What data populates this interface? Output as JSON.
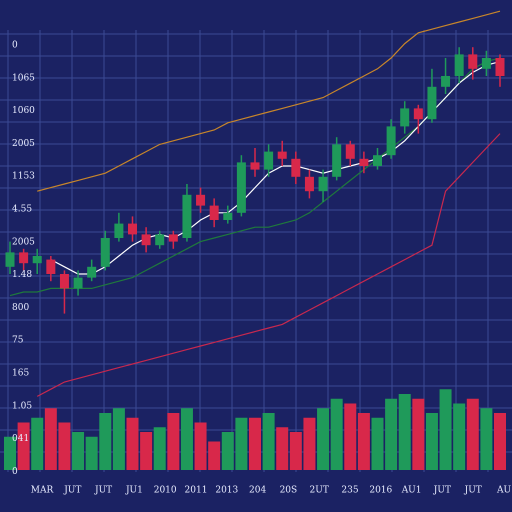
{
  "chart_data": {
    "type": "candlestick",
    "y_labels": [
      "0",
      "1065",
      "1060",
      "2005",
      "1153",
      "4.55",
      "2005",
      "1.48",
      "800",
      "75",
      "165",
      "1.05",
      "041",
      "0"
    ],
    "x_labels": [
      "MAR",
      "JUT",
      "JUT",
      "JU1",
      "2010",
      "2011",
      "2013",
      "204",
      "20S",
      "2UT",
      "235",
      "2016",
      "AU1",
      "JUT",
      "JUT",
      "AU"
    ],
    "ylim": [
      0,
      110
    ],
    "volume_lim": [
      0,
      40
    ],
    "up_color": "#1f9a5a",
    "down_color": "#d8284a",
    "candles": [
      {
        "open": 37,
        "high": 44,
        "low": 35,
        "close": 41
      },
      {
        "open": 41,
        "high": 42,
        "low": 36,
        "close": 38
      },
      {
        "open": 38,
        "high": 42,
        "low": 35,
        "close": 40
      },
      {
        "open": 39,
        "high": 40,
        "low": 33,
        "close": 35
      },
      {
        "open": 35,
        "high": 36,
        "low": 24,
        "close": 31
      },
      {
        "open": 31,
        "high": 36,
        "low": 29,
        "close": 34
      },
      {
        "open": 34,
        "high": 39,
        "low": 33,
        "close": 37
      },
      {
        "open": 37,
        "high": 47,
        "low": 36,
        "close": 45
      },
      {
        "open": 45,
        "high": 52,
        "low": 44,
        "close": 49
      },
      {
        "open": 49,
        "high": 51,
        "low": 44,
        "close": 46
      },
      {
        "open": 46,
        "high": 48,
        "low": 41,
        "close": 43
      },
      {
        "open": 43,
        "high": 47,
        "low": 42,
        "close": 46
      },
      {
        "open": 46,
        "high": 47,
        "low": 42,
        "close": 44
      },
      {
        "open": 45,
        "high": 60,
        "low": 44,
        "close": 57
      },
      {
        "open": 57,
        "high": 59,
        "low": 52,
        "close": 54
      },
      {
        "open": 54,
        "high": 56,
        "low": 48,
        "close": 50
      },
      {
        "open": 50,
        "high": 54,
        "low": 49,
        "close": 52
      },
      {
        "open": 52,
        "high": 68,
        "low": 51,
        "close": 66
      },
      {
        "open": 66,
        "high": 70,
        "low": 62,
        "close": 64
      },
      {
        "open": 64,
        "high": 71,
        "low": 62,
        "close": 69
      },
      {
        "open": 69,
        "high": 72,
        "low": 65,
        "close": 67
      },
      {
        "open": 67,
        "high": 69,
        "low": 60,
        "close": 62
      },
      {
        "open": 62,
        "high": 64,
        "low": 56,
        "close": 58
      },
      {
        "open": 58,
        "high": 64,
        "low": 55,
        "close": 62
      },
      {
        "open": 62,
        "high": 73,
        "low": 61,
        "close": 71
      },
      {
        "open": 71,
        "high": 72,
        "low": 65,
        "close": 67
      },
      {
        "open": 67,
        "high": 69,
        "low": 63,
        "close": 65
      },
      {
        "open": 65,
        "high": 70,
        "low": 64,
        "close": 68
      },
      {
        "open": 68,
        "high": 78,
        "low": 67,
        "close": 76
      },
      {
        "open": 76,
        "high": 83,
        "low": 74,
        "close": 81
      },
      {
        "open": 81,
        "high": 82,
        "low": 74,
        "close": 78
      },
      {
        "open": 78,
        "high": 92,
        "low": 77,
        "close": 87
      },
      {
        "open": 87,
        "high": 95,
        "low": 85,
        "close": 90
      },
      {
        "open": 90,
        "high": 98,
        "low": 88,
        "close": 96
      },
      {
        "open": 96,
        "high": 98,
        "low": 89,
        "close": 92
      },
      {
        "open": 92,
        "high": 97,
        "low": 90,
        "close": 95
      },
      {
        "open": 95,
        "high": 96,
        "low": 87,
        "close": 90
      }
    ],
    "volume": [
      14,
      20,
      22,
      26,
      20,
      16,
      14,
      24,
      26,
      22,
      16,
      18,
      24,
      26,
      20,
      12,
      16,
      22,
      22,
      24,
      18,
      16,
      22,
      26,
      30,
      28,
      24,
      22,
      30,
      32,
      30,
      24,
      34,
      28,
      30,
      26,
      24
    ],
    "lines": [
      {
        "color": "#c8862a",
        "values": [
          null,
          null,
          58,
          59,
          60,
          61,
          62,
          63,
          65,
          67,
          69,
          71,
          72,
          73,
          74,
          75,
          77,
          78,
          79,
          80,
          81,
          82,
          83,
          84,
          86,
          88,
          90,
          92,
          95,
          99,
          102,
          103,
          104,
          105,
          106,
          107,
          108
        ]
      },
      {
        "color": "#1f7a3c",
        "values": [
          29,
          30,
          30,
          31,
          31,
          31,
          31,
          32,
          33,
          34,
          36,
          38,
          40,
          42,
          44,
          45,
          46,
          47,
          48,
          48,
          49,
          50,
          52,
          55,
          58,
          61,
          64,
          67,
          70,
          73,
          76,
          80,
          84,
          88,
          92,
          94,
          95
        ]
      },
      {
        "color": "#c8284e",
        "values": [
          null,
          null,
          1,
          3,
          5,
          6,
          7,
          8,
          9,
          10,
          11,
          12,
          13,
          14,
          15,
          16,
          17,
          18,
          19,
          20,
          21,
          23,
          25,
          27,
          29,
          31,
          33,
          35,
          37,
          39,
          41,
          43,
          58,
          62,
          66,
          70,
          74
        ]
      },
      {
        "color": "#ffffff",
        "values": [
          null,
          null,
          null,
          39,
          37,
          35,
          35,
          37,
          40,
          43,
          45,
          46,
          45,
          47,
          50,
          52,
          52,
          55,
          59,
          63,
          65,
          65,
          64,
          63,
          64,
          65,
          66,
          67,
          69,
          72,
          76,
          80,
          84,
          88,
          91,
          93,
          94
        ]
      }
    ]
  }
}
